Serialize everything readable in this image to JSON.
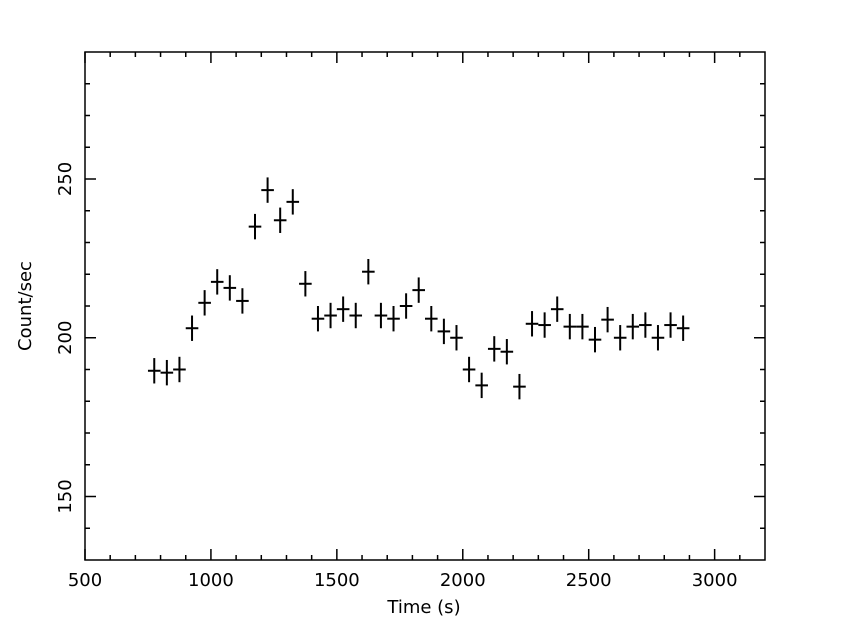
{
  "chart_data": {
    "type": "scatter",
    "x_label": "Time (s)",
    "y_label": "Count/sec",
    "xlim": [
      500,
      3200
    ],
    "ylim": [
      130,
      290
    ],
    "xticks": [
      500,
      1000,
      1500,
      2000,
      2500,
      3000
    ],
    "yticks": [
      150,
      200,
      250
    ],
    "xminorticks": [
      600,
      700,
      800,
      900,
      1100,
      1200,
      1300,
      1400,
      1600,
      1700,
      1800,
      1900,
      2100,
      2200,
      2300,
      2400,
      2600,
      2700,
      2800,
      2900,
      3100
    ],
    "yminorticks": [
      140,
      160,
      170,
      180,
      190,
      210,
      220,
      230,
      240,
      260,
      270,
      280
    ],
    "series": [
      {
        "color": "#000000",
        "x": [
          775,
          825,
          875,
          925,
          975,
          1025,
          1075,
          1125,
          1175,
          1225,
          1275,
          1325,
          1375,
          1425,
          1475,
          1525,
          1575,
          1625,
          1675,
          1725,
          1775,
          1825,
          1875,
          1925,
          1975,
          2025,
          2075,
          2125,
          2175,
          2225,
          2275,
          2325,
          2375,
          2425,
          2475,
          2525,
          2575,
          2625,
          2675,
          2725,
          2775,
          2825,
          2875
        ],
        "values": [
          189.6,
          189,
          190,
          203,
          211,
          217.6,
          215.7,
          211.6,
          235,
          246.5,
          237,
          242.8,
          217,
          206,
          207,
          209,
          207,
          220.8,
          207,
          206,
          210,
          215,
          206,
          202,
          200,
          190,
          185,
          196.5,
          195.6,
          184.6,
          204.4,
          204,
          209,
          203.5,
          203.5,
          199.4,
          205.7,
          200,
          203.5,
          204,
          200,
          204,
          203
        ],
        "xerr": 25,
        "yerr": 4
      }
    ]
  }
}
